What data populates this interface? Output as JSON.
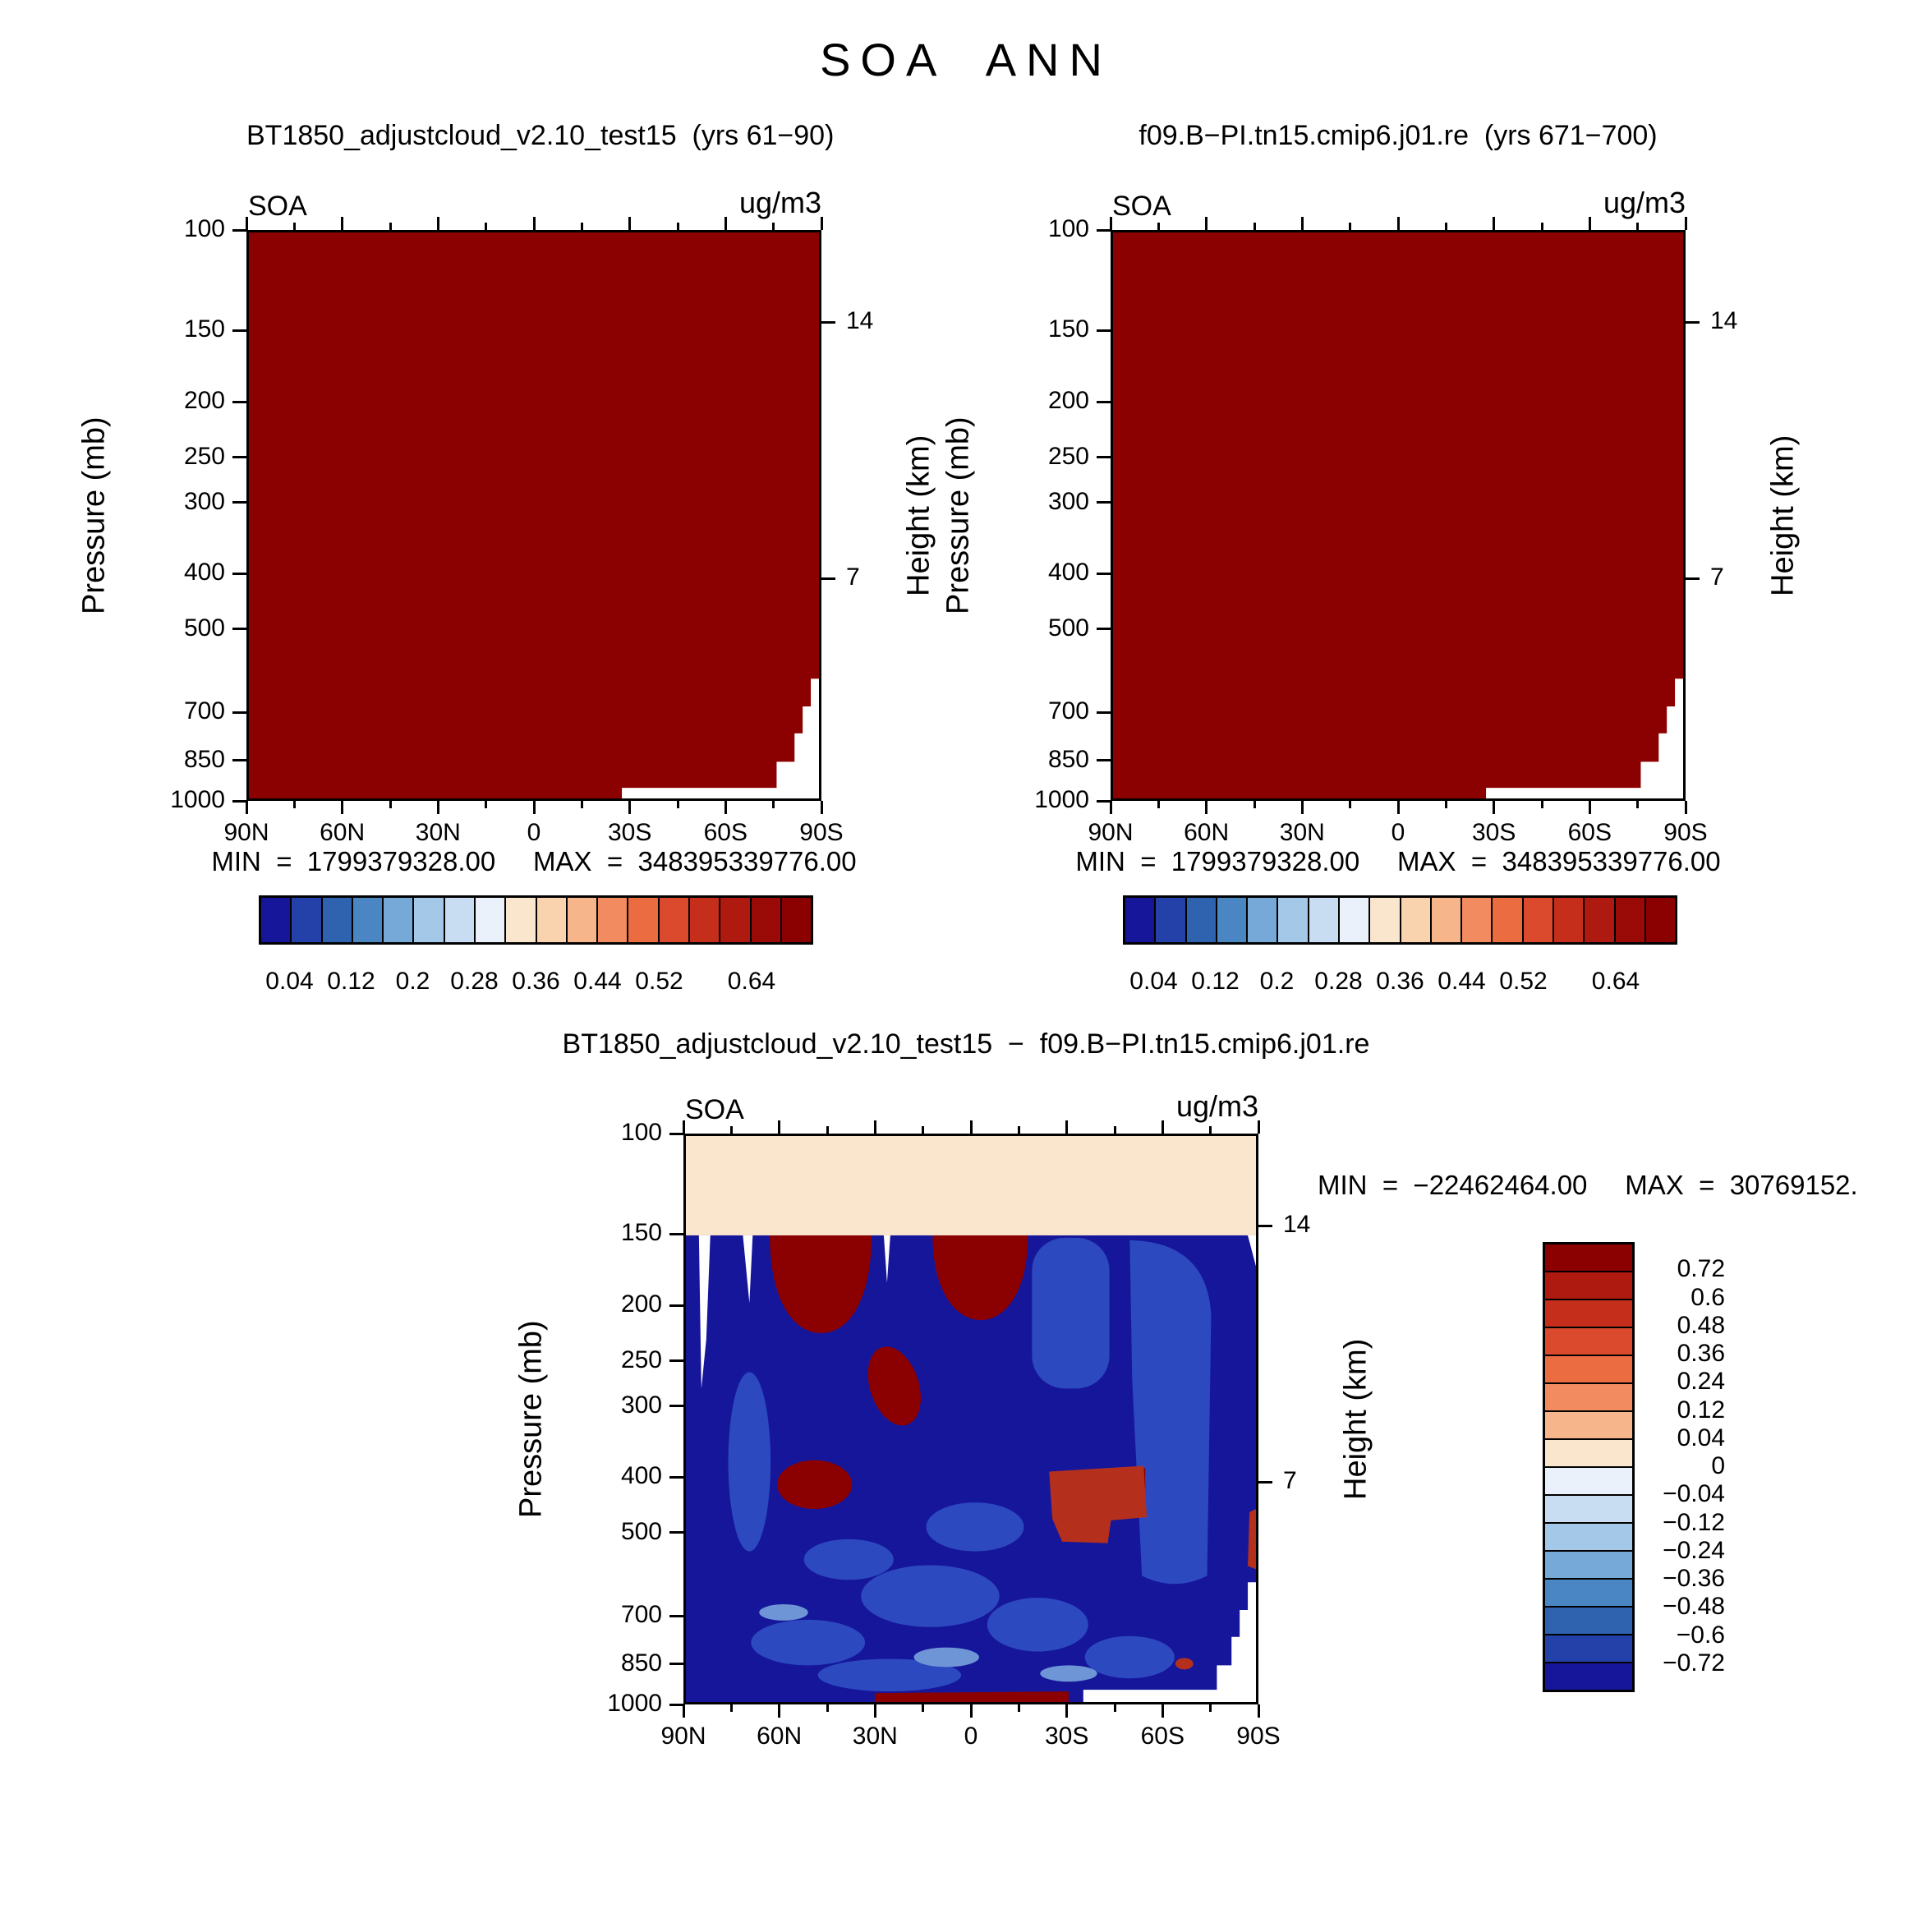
{
  "page": {
    "title": "SOA ANN"
  },
  "panels": {
    "left": {
      "title": "BT1850_adjustcloud_v2.10_test15  (yrs 61−90)",
      "var_label": "SOA",
      "units_label": "ug/m3",
      "stats": "MIN  =  1799379328.00     MAX  =  348395339776.00"
    },
    "right": {
      "title": "f09.B−PI.tn15.cmip6.j01.re  (yrs 671−700)",
      "var_label": "SOA",
      "units_label": "ug/m3",
      "stats": "MIN  =  1799379328.00     MAX  =  348395339776.00"
    },
    "diff": {
      "title": "BT1850_adjustcloud_v2.10_test15  −  f09.B−PI.tn15.cmip6.j01.re",
      "var_label": "SOA",
      "units_label": "ug/m3",
      "stats": "MIN  =  −22462464.00     MAX  =  30769152."
    }
  },
  "axes": {
    "pressure_label": "Pressure (mb)",
    "height_label": "Height (km)",
    "pressure_ticks": [
      100,
      150,
      200,
      250,
      300,
      400,
      500,
      700,
      850,
      1000
    ],
    "height_ticks": [
      {
        "label": "14",
        "pressure": 145
      },
      {
        "label": "7",
        "pressure": 408
      }
    ],
    "lat_ticks": [
      "90N",
      "60N",
      "30N",
      "0",
      "30S",
      "60S",
      "90S"
    ]
  },
  "colorbar_h": {
    "colors": [
      "#16169B",
      "#2341A8",
      "#2F63B0",
      "#4B86C4",
      "#76A9D8",
      "#A3C8E8",
      "#C9DDF2",
      "#EBF1FB",
      "#FAE5CD",
      "#F9D2AE",
      "#F7B58B",
      "#F28C60",
      "#EC6C42",
      "#DC4A2D",
      "#C62E1C",
      "#AE1A10",
      "#9A0A06",
      "#8B0000"
    ],
    "labels": [
      {
        "text": "0.04",
        "b": 1
      },
      {
        "text": "0.12",
        "b": 3
      },
      {
        "text": "0.2",
        "b": 5
      },
      {
        "text": "0.28",
        "b": 7
      },
      {
        "text": "0.36",
        "b": 9
      },
      {
        "text": "0.44",
        "b": 11
      },
      {
        "text": "0.52",
        "b": 13
      },
      {
        "text": "0.64",
        "b": 16
      }
    ]
  },
  "colorbar_v": {
    "colors": [
      "#8B0000",
      "#AE1A10",
      "#C62E1C",
      "#DC4A2D",
      "#EC6C42",
      "#F28C60",
      "#F7B58B",
      "#FAE5CD",
      "#EBF1FB",
      "#C9DDF2",
      "#A3C8E8",
      "#76A9D8",
      "#4B86C4",
      "#2F63B0",
      "#2341A8",
      "#16169B"
    ],
    "labels": [
      {
        "text": "0.72",
        "b": 1
      },
      {
        "text": "0.6",
        "b": 2
      },
      {
        "text": "0.48",
        "b": 3
      },
      {
        "text": "0.36",
        "b": 4
      },
      {
        "text": "0.24",
        "b": 5
      },
      {
        "text": "0.12",
        "b": 6
      },
      {
        "text": "0.04",
        "b": 7
      },
      {
        "text": "0",
        "b": 8
      },
      {
        "text": "−0.04",
        "b": 9
      },
      {
        "text": "−0.12",
        "b": 10
      },
      {
        "text": "−0.24",
        "b": 11
      },
      {
        "text": "−0.36",
        "b": 12
      },
      {
        "text": "−0.48",
        "b": 13
      },
      {
        "text": "−0.6",
        "b": 14
      },
      {
        "text": "−0.72",
        "b": 15
      }
    ]
  },
  "chart_data": [
    {
      "type": "heatmap",
      "title": "BT1850_adjustcloud_v2.10_test15 (yrs 61−90)",
      "variable": "SOA",
      "season": "ANN",
      "units": "ug/m3",
      "x_ticks": [
        "90N",
        "60N",
        "30N",
        "0",
        "30S",
        "60S",
        "90S"
      ],
      "ylabel": "Pressure (mb)",
      "y_ticks": [
        100,
        150,
        200,
        250,
        300,
        400,
        500,
        700,
        850,
        1000
      ],
      "y_scale": "log",
      "y2label": "Height (km)",
      "y2_ticks": [
        14,
        7
      ],
      "min": 1799379328.0,
      "max": 348395339776.0,
      "colorbar_tick_labels": [
        0.04,
        0.12,
        0.2,
        0.28,
        0.36,
        0.44,
        0.52,
        0.64
      ],
      "legend_position": "horizontal, below plot",
      "summary": "Entire latitude-pressure cross-section is saturated at the highest contour colour (dark red, above top level); white topography notch near 90S below about 550 mb."
    },
    {
      "type": "heatmap",
      "title": "f09.B−PI.tn15.cmip6.j01.re (yrs 671−700)",
      "variable": "SOA",
      "season": "ANN",
      "units": "ug/m3",
      "x_ticks": [
        "90N",
        "60N",
        "30N",
        "0",
        "30S",
        "60S",
        "90S"
      ],
      "ylabel": "Pressure (mb)",
      "y_ticks": [
        100,
        150,
        200,
        250,
        300,
        400,
        500,
        700,
        850,
        1000
      ],
      "y_scale": "log",
      "y2label": "Height (km)",
      "y2_ticks": [
        14,
        7
      ],
      "min": 1799379328.0,
      "max": 348395339776.0,
      "colorbar_tick_labels": [
        0.04,
        0.12,
        0.2,
        0.28,
        0.36,
        0.44,
        0.52,
        0.64
      ],
      "legend_position": "horizontal, below plot",
      "summary": "Identical appearance to left panel: fully saturated dark red field with white terrain notch near the South Pole."
    },
    {
      "type": "heatmap",
      "title": "BT1850_adjustcloud_v2.10_test15 − f09.B−PI.tn15.cmip6.j01.re",
      "variable": "SOA",
      "season": "ANN",
      "units": "ug/m3",
      "x_ticks": [
        "90N",
        "60N",
        "30N",
        "0",
        "30S",
        "60S",
        "90S"
      ],
      "ylabel": "Pressure (mb)",
      "y_ticks": [
        100,
        150,
        200,
        250,
        300,
        400,
        500,
        700,
        850,
        1000
      ],
      "y_scale": "log",
      "y2label": "Height (km)",
      "y2_ticks": [
        14,
        7
      ],
      "min": -22462464.0,
      "max_shown": "30769152.",
      "contour_levels": [
        -0.72,
        -0.6,
        -0.48,
        -0.36,
        -0.24,
        -0.12,
        -0.04,
        0,
        0.04,
        0.12,
        0.24,
        0.36,
        0.48,
        0.6,
        0.72
      ],
      "legend_position": "vertical, right of plot",
      "summary": "Weak positive band (0 to 0.04, cream) above ~150 mb at all latitudes; strongly negative (below −0.72, dark blue) beneath 150 mb, with saturated positive (dark red) blobs near 150–230 mb at 40–65N and 0–20S, ~250–350 mb near 30N, ~400–450 mb near 45–60N, a brick-red patch at 400–500 mb over 25–55S, and a thin positive strip along 1000 mb between ~10N and 35N; white terrain notch near 90S."
    }
  ]
}
